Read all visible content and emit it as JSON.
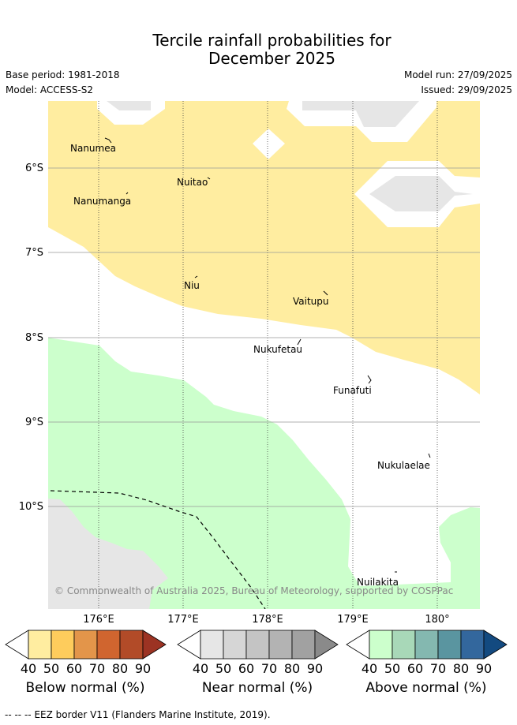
{
  "header": {
    "title_line1": "Tercile rainfall probabilities for",
    "title_line2": "December 2025",
    "base_period": "Base period: 1981-2018",
    "model": "Model: ACCESS-S2",
    "model_run": "Model run: 27/09/2025",
    "issued": "Issued: 29/09/2025"
  },
  "map": {
    "lat_labels": [
      "6°S",
      "7°S",
      "8°S",
      "9°S",
      "10°S"
    ],
    "lon_labels": [
      "176°E",
      "177°E",
      "178°E",
      "179°E",
      "180°"
    ],
    "places": [
      {
        "name": "Nanumea"
      },
      {
        "name": "Nuitao"
      },
      {
        "name": "Nanumanga"
      },
      {
        "name": "Niu"
      },
      {
        "name": "Vaitupu"
      },
      {
        "name": "Nukufetau"
      },
      {
        "name": "Funafuti"
      },
      {
        "name": "Nukulaelae"
      },
      {
        "name": "Nuilakita"
      }
    ],
    "copyright": "© Commonwealth of Australia 2025, Bureau of Meteorology, supported by COSPPac",
    "colors": {
      "below_normal_fill": "#ffeda0",
      "above_normal_fill": "#ccffcc",
      "near_normal_fill": "#e6e6e6",
      "grid": "#444444"
    }
  },
  "colorbars": [
    {
      "title": "Below normal (%)",
      "ticks": [
        "40",
        "50",
        "60",
        "70",
        "80",
        "90"
      ],
      "colors": [
        "#ffeda0",
        "#fecc5c",
        "#e3954a",
        "#d0652f",
        "#b24b28",
        "#9c3323"
      ]
    },
    {
      "title": "Near normal (%)",
      "ticks": [
        "40",
        "50",
        "60",
        "70",
        "80",
        "90"
      ],
      "colors": [
        "#e6e6e6",
        "#d6d6d6",
        "#c4c4c4",
        "#b3b3b3",
        "#a1a1a1",
        "#8a8a8a"
      ]
    },
    {
      "title": "Above normal (%)",
      "ticks": [
        "40",
        "50",
        "60",
        "70",
        "80",
        "90"
      ],
      "colors": [
        "#ccffcc",
        "#a8d8b8",
        "#84b8b0",
        "#5a95a0",
        "#33679d",
        "#134a80"
      ]
    }
  ],
  "footer": {
    "legend_symbol": "-- -- --",
    "legend_text": "EEZ border V11 (Flanders Marine Institute, 2019)."
  }
}
